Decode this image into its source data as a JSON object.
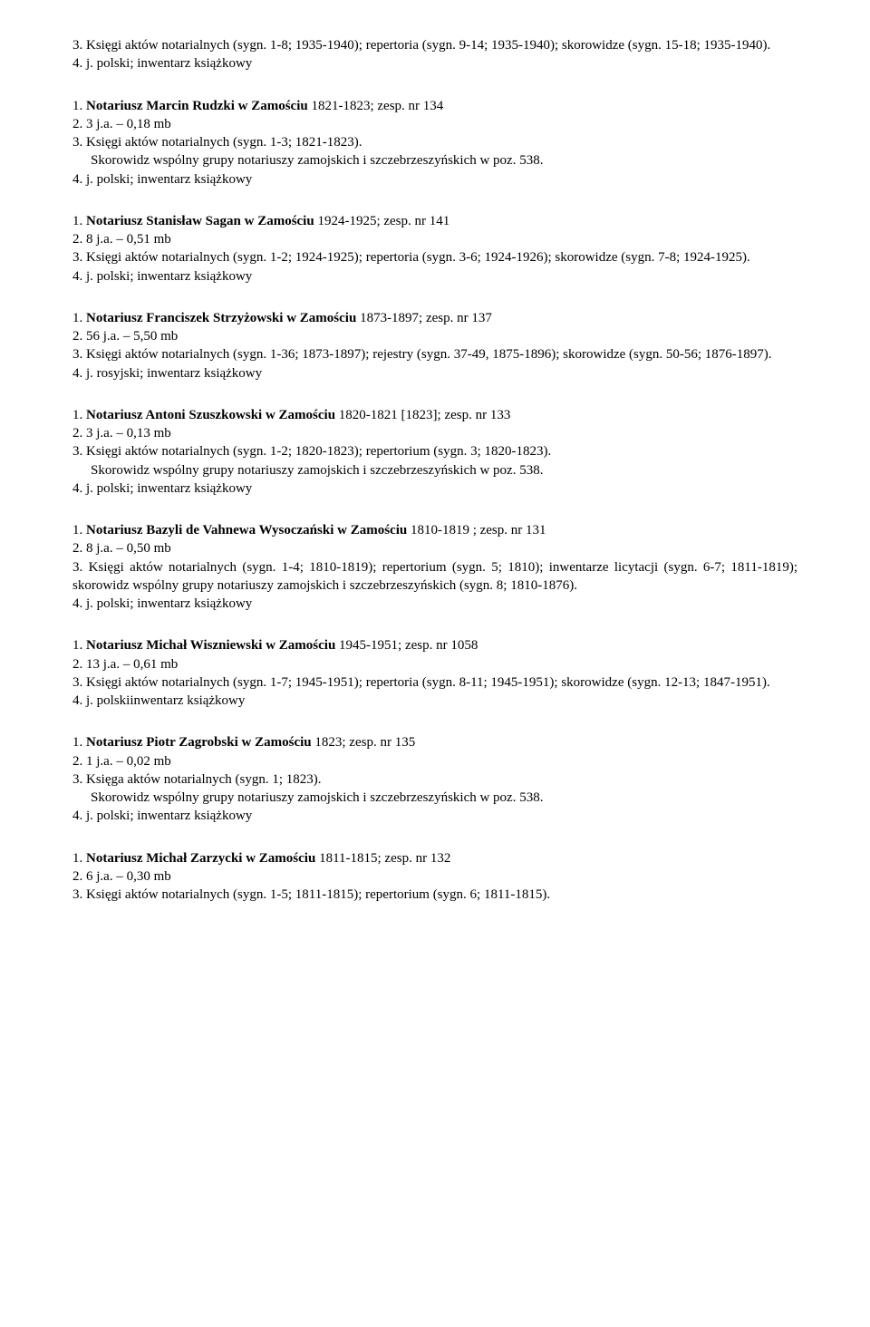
{
  "entries": [
    {
      "lines": [
        {
          "text": "3. Księgi aktów notarialnych (sygn. 1-8; 1935-1940); repertoria (sygn. 9-14; 1935-1940); skorowidze (sygn. 15-18; 1935-1940)."
        },
        {
          "text": "4. j. polski; inwentarz książkowy"
        }
      ]
    },
    {
      "lines": [
        {
          "prefix": "1. ",
          "bold": "Notariusz Marcin Rudzki w Zamościu",
          "suffix": " 1821-1823; zesp. nr 134"
        },
        {
          "text": "2. 3 j.a. – 0,18 mb"
        },
        {
          "text": "3. Księgi aktów notarialnych (sygn. 1-3; 1821-1823)."
        },
        {
          "text": "Skorowidz wspólny grupy notariuszy zamojskich i szczebrzeszyńskich w poz. 538.",
          "indent": true
        },
        {
          "text": "4. j. polski; inwentarz książkowy"
        }
      ]
    },
    {
      "lines": [
        {
          "prefix": "1. ",
          "bold": "Notariusz Stanisław Sagan w Zamościu",
          "suffix": " 1924-1925; zesp. nr 141"
        },
        {
          "text": "2. 8 j.a. – 0,51 mb"
        },
        {
          "text": "3. Księgi aktów notarialnych (sygn. 1-2; 1924-1925); repertoria (sygn. 3-6; 1924-1926); skorowidze (sygn. 7-8; 1924-1925)."
        },
        {
          "text": "4. j. polski; inwentarz książkowy"
        }
      ]
    },
    {
      "lines": [
        {
          "prefix": "1. ",
          "bold": "Notariusz Franciszek Strzyżowski w Zamościu",
          "suffix": " 1873-1897; zesp. nr 137"
        },
        {
          "text": "2. 56 j.a. – 5,50 mb"
        },
        {
          "text": "3. Księgi aktów notarialnych (sygn. 1-36; 1873-1897); rejestry (sygn. 37-49, 1875-1896); skorowidze (sygn. 50-56; 1876-1897)."
        },
        {
          "text": "4. j. rosyjski; inwentarz książkowy"
        }
      ]
    },
    {
      "lines": [
        {
          "prefix": "1. ",
          "bold": "Notariusz Antoni Szuszkowski w Zamościu",
          "suffix": " 1820-1821 [1823]; zesp. nr 133"
        },
        {
          "text": "2. 3 j.a. – 0,13 mb"
        },
        {
          "text": "3. Księgi aktów notarialnych (sygn. 1-2; 1820-1823); repertorium (sygn. 3; 1820-1823)."
        },
        {
          "text": "Skorowidz wspólny grupy notariuszy zamojskich i szczebrzeszyńskich w poz. 538.",
          "indent": true
        },
        {
          "text": "4. j. polski; inwentarz książkowy"
        }
      ]
    },
    {
      "lines": [
        {
          "prefix": "1. ",
          "bold": "Notariusz Bazyli de Vahnewa Wysoczański w Zamościu",
          "suffix": " 1810-1819 ; zesp. nr 131"
        },
        {
          "text": "2. 8 j.a. – 0,50 mb"
        },
        {
          "text": "3. Księgi aktów notarialnych (sygn. 1-4; 1810-1819); repertorium (sygn. 5; 1810); inwentarze licytacji (sygn. 6-7; 1811-1819); skorowidz wspólny grupy notariuszy zamojskich i szczebrzeszyńskich (sygn. 8; 1810-1876)."
        },
        {
          "text": "4. j. polski; inwentarz książkowy"
        }
      ]
    },
    {
      "lines": [
        {
          "prefix": "1. ",
          "bold": "Notariusz Michał Wiszniewski w Zamościu",
          "suffix": " 1945-1951; zesp. nr 1058"
        },
        {
          "text": "2. 13 j.a. – 0,61 mb"
        },
        {
          "text": "3. Księgi aktów notarialnych (sygn. 1-7; 1945-1951); repertoria (sygn. 8-11; 1945-1951); skorowidze (sygn. 12-13; 1847-1951)."
        },
        {
          "text": "4. j. polskiinwentarz książkowy"
        }
      ]
    },
    {
      "lines": [
        {
          "prefix": "1. ",
          "bold": "Notariusz Piotr Zagrobski w Zamościu",
          "suffix": " 1823; zesp. nr 135"
        },
        {
          "text": "2. 1 j.a. – 0,02 mb"
        },
        {
          "text": "3. Księga aktów notarialnych (sygn. 1; 1823)."
        },
        {
          "text": "Skorowidz wspólny grupy notariuszy zamojskich i szczebrzeszyńskich w poz. 538.",
          "indent": true
        },
        {
          "text": "4. j. polski; inwentarz książkowy"
        }
      ]
    },
    {
      "lines": [
        {
          "prefix": "1. ",
          "bold": "Notariusz Michał Zarzycki w Zamościu",
          "suffix": " 1811-1815; zesp. nr 132"
        },
        {
          "text": "2. 6 j.a. – 0,30 mb"
        },
        {
          "text": "3. Księgi aktów notarialnych (sygn. 1-5; 1811-1815); repertorium (sygn. 6; 1811-1815)."
        }
      ]
    }
  ]
}
